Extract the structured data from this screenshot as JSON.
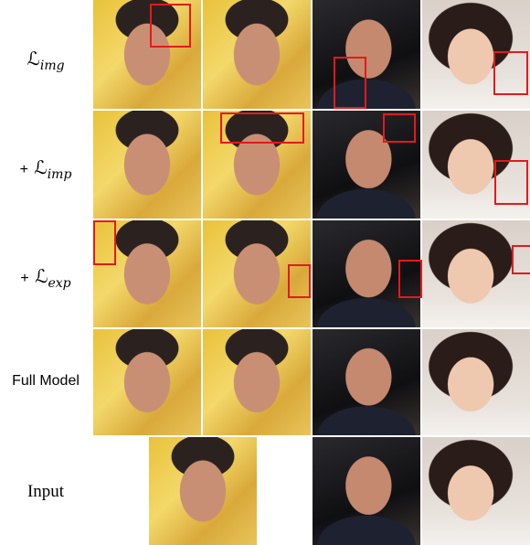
{
  "rows": [
    {
      "symbol": "ℒ",
      "sub": "img"
    },
    {
      "prefix": "+",
      "symbol": "ℒ",
      "sub": "imp"
    },
    {
      "prefix": "+",
      "symbol": "ℒ",
      "sub": "exp"
    },
    {
      "text": "Full Model"
    }
  ],
  "input": {
    "text": "Input"
  }
}
